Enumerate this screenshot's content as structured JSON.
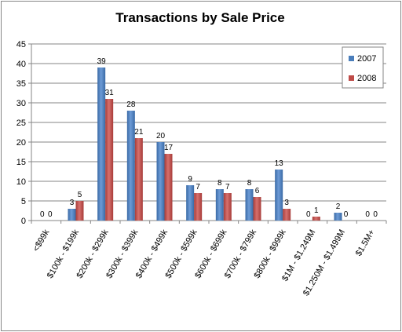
{
  "chart_data": {
    "type": "bar",
    "title": "Transactions by Sale Price",
    "xlabel": "",
    "ylabel": "",
    "ylim": [
      0,
      45
    ],
    "yticks": [
      0,
      5,
      10,
      15,
      20,
      25,
      30,
      35,
      40,
      45
    ],
    "grid": true,
    "legend_position": "right",
    "categories": [
      "<$99k",
      "$100k - $199k",
      "$200k - $299k",
      "$300k - $399k",
      "$400k - $499k",
      "$500k - $599k",
      "$600k - $699k",
      "$700k - $799k",
      "$800k - $999k",
      "$1M - $1.249M",
      "$1.250M - $1.499M",
      "$1.5M+"
    ],
    "series": [
      {
        "name": "2007",
        "color": "#4a7ebb",
        "values": [
          0,
          3,
          39,
          28,
          20,
          9,
          8,
          8,
          13,
          0,
          2,
          0
        ]
      },
      {
        "name": "2008",
        "color": "#be4b48",
        "values": [
          0,
          5,
          31,
          21,
          17,
          7,
          7,
          6,
          3,
          1,
          0,
          0
        ]
      }
    ]
  }
}
